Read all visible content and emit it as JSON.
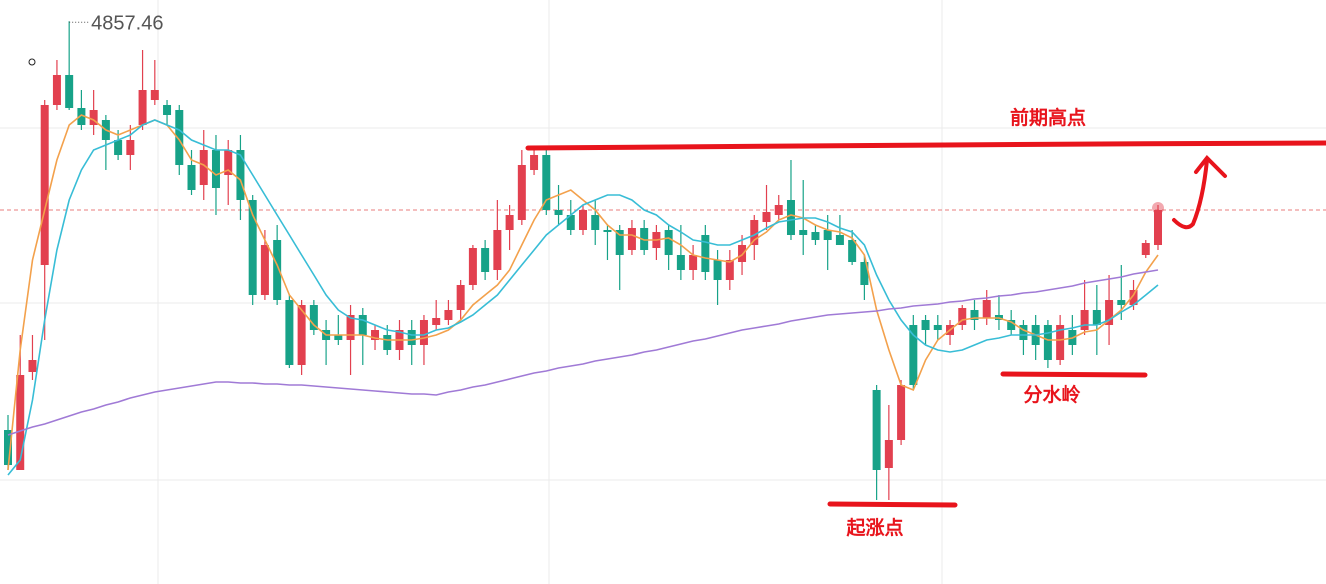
{
  "chart_data": {
    "type": "candlestick",
    "ylim": [
      3732,
      4900
    ],
    "up_color": "#e2404f",
    "down_color": "#17a288",
    "open": [
      4040,
      3960,
      4156,
      4370,
      4690,
      4750,
      4684,
      4650,
      4660,
      4620,
      4590,
      4650,
      4700,
      4690,
      4680,
      4570,
      4530,
      4600,
      4550,
      4600,
      4500,
      4310,
      4420,
      4300,
      4170,
      4290,
      4240,
      4230,
      4220,
      4270,
      4220,
      4230,
      4200,
      4240,
      4210,
      4250,
      4260,
      4280,
      4330,
      4404,
      4360,
      4440,
      4460,
      4560,
      4590,
      4480,
      4470,
      4440,
      4470,
      4440,
      4440,
      4400,
      4444,
      4404,
      4440,
      4390,
      4360,
      4430,
      4380,
      4340,
      4376,
      4410,
      4456,
      4470,
      4500,
      4440,
      4436,
      4440,
      4430,
      4420,
      4376,
      4120,
      3964,
      4020,
      4250,
      4260,
      4250,
      4230,
      4250,
      4280,
      4264,
      4270,
      4260,
      4250,
      4250,
      4250,
      4180,
      4240,
      4240,
      4280,
      4250,
      4300,
      4290,
      4390,
      4410
    ],
    "high": [
      4070,
      4230,
      4230,
      4700,
      4780,
      4857.46,
      4720,
      4720,
      4670,
      4640,
      4650,
      4800,
      4780,
      4700,
      4690,
      4600,
      4640,
      4630,
      4620,
      4630,
      4510,
      4440,
      4450,
      4310,
      4300,
      4300,
      4260,
      4270,
      4290,
      4284,
      4250,
      4250,
      4260,
      4260,
      4270,
      4300,
      4300,
      4340,
      4410,
      4420,
      4500,
      4490,
      4600,
      4600,
      4600,
      4530,
      4500,
      4490,
      4500,
      4450,
      4450,
      4460,
      4460,
      4450,
      4450,
      4450,
      4410,
      4450,
      4400,
      4400,
      4430,
      4470,
      4530,
      4510,
      4580,
      4540,
      4450,
      4470,
      4470,
      4440,
      4390,
      4130,
      4090,
      4140,
      4270,
      4270,
      4270,
      4260,
      4290,
      4300,
      4320,
      4310,
      4280,
      4260,
      4270,
      4260,
      4270,
      4270,
      4340,
      4330,
      4350,
      4370,
      4340,
      4420,
      4490
    ],
    "low": [
      3960,
      3960,
      4140,
      4220,
      4680,
      4680,
      4640,
      4630,
      4560,
      4580,
      4560,
      4640,
      4690,
      4650,
      4550,
      4510,
      4500,
      4470,
      4490,
      4460,
      4290,
      4300,
      4290,
      4164,
      4150,
      4230,
      4170,
      4210,
      4150,
      4170,
      4200,
      4190,
      4180,
      4170,
      4170,
      4240,
      4250,
      4260,
      4320,
      4340,
      4340,
      4400,
      4450,
      4550,
      4470,
      4450,
      4430,
      4430,
      4410,
      4380,
      4320,
      4390,
      4390,
      4380,
      4360,
      4340,
      4340,
      4340,
      4290,
      4320,
      4350,
      4380,
      4440,
      4460,
      4420,
      4390,
      4410,
      4360,
      4410,
      4370,
      4300,
      3900,
      3900,
      4010,
      4120,
      4210,
      4220,
      4210,
      4240,
      4240,
      4250,
      4240,
      4230,
      4190,
      4180,
      4164,
      4170,
      4190,
      4230,
      4190,
      4210,
      4260,
      4280,
      4384,
      4400
    ],
    "close": [
      3970,
      4150,
      4180,
      4690,
      4750,
      4684,
      4650,
      4680,
      4620,
      4590,
      4620,
      4720,
      4720,
      4670,
      4570,
      4520,
      4600,
      4524,
      4600,
      4500,
      4310,
      4410,
      4300,
      4170,
      4290,
      4240,
      4220,
      4220,
      4270,
      4230,
      4240,
      4200,
      4240,
      4210,
      4260,
      4264,
      4280,
      4330,
      4404,
      4356,
      4440,
      4470,
      4570,
      4590,
      4480,
      4470,
      4440,
      4480,
      4440,
      4436,
      4390,
      4444,
      4400,
      4436,
      4390,
      4360,
      4390,
      4356,
      4340,
      4380,
      4410,
      4460,
      4476,
      4490,
      4430,
      4430,
      4420,
      4420,
      4410,
      4376,
      4330,
      3960,
      4020,
      4130,
      4130,
      4240,
      4240,
      4250,
      4284,
      4260,
      4300,
      4260,
      4240,
      4220,
      4210,
      4180,
      4250,
      4210,
      4280,
      4250,
      4300,
      4290,
      4320,
      4414,
      4480
    ],
    "series": [
      {
        "color": "#f3a14c",
        "values": [
          3960,
          4200,
          4380,
          4480,
          4580,
          4650,
          4670,
          4660,
          4640,
          4630,
          4640,
          4650,
          4660,
          4650,
          4620,
          4580,
          4570,
          4550,
          4560,
          4540,
          4470,
          4420,
          4370,
          4310,
          4280,
          4250,
          4230,
          4230,
          4230,
          4230,
          4224,
          4220,
          4220,
          4220,
          4224,
          4230,
          4240,
          4260,
          4290,
          4310,
          4330,
          4360,
          4410,
          4460,
          4500,
          4510,
          4520,
          4500,
          4480,
          4450,
          4430,
          4430,
          4420,
          4420,
          4424,
          4410,
          4390,
          4384,
          4380,
          4376,
          4390,
          4420,
          4436,
          4460,
          4470,
          4464,
          4450,
          4440,
          4436,
          4424,
          4390,
          4280,
          4200,
          4130,
          4120,
          4180,
          4220,
          4240,
          4260,
          4264,
          4264,
          4264,
          4256,
          4240,
          4230,
          4220,
          4220,
          4224,
          4236,
          4240,
          4260,
          4280,
          4310,
          4356,
          4390
        ]
      },
      {
        "color": "#38bdd6",
        "values": [
          3950,
          3980,
          4100,
          4260,
          4400,
          4500,
          4560,
          4600,
          4610,
          4620,
          4630,
          4650,
          4660,
          4650,
          4640,
          4620,
          4610,
          4600,
          4600,
          4590,
          4550,
          4510,
          4470,
          4430,
          4390,
          4350,
          4310,
          4280,
          4264,
          4260,
          4250,
          4240,
          4236,
          4230,
          4230,
          4240,
          4244,
          4256,
          4270,
          4290,
          4310,
          4340,
          4370,
          4400,
          4430,
          4450,
          4470,
          4490,
          4500,
          4510,
          4510,
          4500,
          4480,
          4470,
          4450,
          4436,
          4420,
          4416,
          4410,
          4410,
          4420,
          4430,
          4444,
          4456,
          4460,
          4464,
          4464,
          4456,
          4444,
          4436,
          4410,
          4350,
          4300,
          4260,
          4230,
          4210,
          4200,
          4196,
          4200,
          4210,
          4220,
          4224,
          4230,
          4230,
          4230,
          4234,
          4240,
          4244,
          4250,
          4250,
          4260,
          4276,
          4290,
          4310,
          4330
        ]
      },
      {
        "color": "#a07ad6",
        "values": [
          4030,
          4038,
          4046,
          4052,
          4060,
          4068,
          4076,
          4082,
          4090,
          4096,
          4104,
          4110,
          4116,
          4120,
          4124,
          4128,
          4132,
          4136,
          4136,
          4134,
          4134,
          4132,
          4132,
          4130,
          4130,
          4128,
          4126,
          4124,
          4122,
          4120,
          4118,
          4116,
          4114,
          4112,
          4112,
          4110,
          4116,
          4120,
          4126,
          4130,
          4136,
          4142,
          4148,
          4154,
          4158,
          4164,
          4168,
          4172,
          4178,
          4182,
          4186,
          4190,
          4196,
          4200,
          4206,
          4212,
          4218,
          4222,
          4228,
          4234,
          4240,
          4244,
          4248,
          4252,
          4258,
          4262,
          4266,
          4270,
          4272,
          4274,
          4276,
          4278,
          4282,
          4284,
          4288,
          4290,
          4292,
          4296,
          4298,
          4302,
          4304,
          4308,
          4310,
          4314,
          4316,
          4320,
          4324,
          4328,
          4334,
          4338,
          4342,
          4346,
          4352,
          4356,
          4360
        ]
      }
    ],
    "annotations": [
      "前期高点",
      "分水岭",
      "起涨点"
    ]
  }
}
